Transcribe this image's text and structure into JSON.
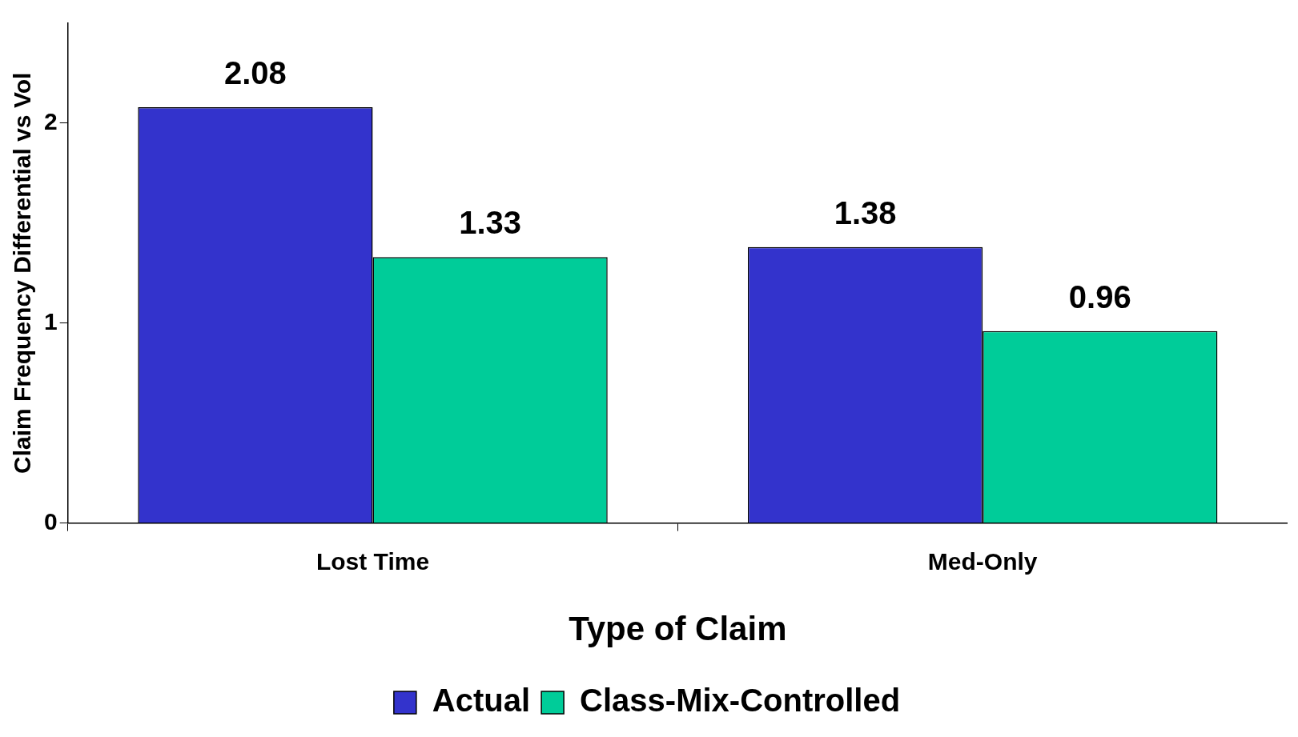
{
  "chart_data": {
    "type": "bar",
    "xlabel": "Type of Claim",
    "ylabel": "Claim Frequency Differential vs Vol",
    "categories": [
      "Lost Time",
      "Med-Only"
    ],
    "series": [
      {
        "name": "Actual",
        "color": "#3333cc",
        "values": [
          2.08,
          1.38
        ]
      },
      {
        "name": "Class-Mix-Controlled",
        "color": "#00cc99",
        "values": [
          1.33,
          0.96
        ]
      }
    ],
    "ylim": [
      0,
      2.5
    ],
    "yticks": [
      0,
      1,
      2
    ],
    "grid": false,
    "legend": "bottom",
    "data_labels": true
  }
}
